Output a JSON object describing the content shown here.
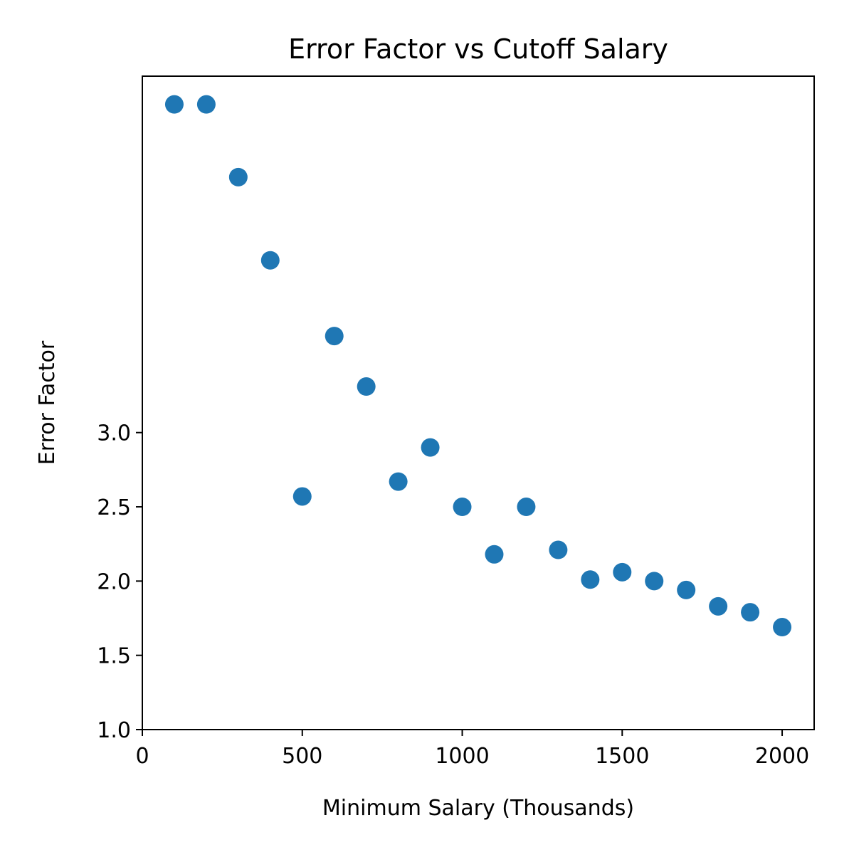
{
  "chart_data": {
    "type": "scatter",
    "title": "Error Factor vs Cutoff Salary",
    "xlabel": "Minimum Salary (Thousands)",
    "ylabel": "Error Factor",
    "xlim": [
      0,
      2100
    ],
    "ylim": [
      1.0,
      5.4
    ],
    "xticks": [
      0,
      500,
      1000,
      1500,
      2000
    ],
    "xtick_labels": [
      "0",
      "500",
      "1000",
      "1500",
      "2000"
    ],
    "yticks": [
      1.0,
      1.5,
      2.0,
      2.5,
      3.0
    ],
    "ytick_labels": [
      "1.0",
      "1.5",
      "2.0",
      "2.5",
      "3.0"
    ],
    "grid": false,
    "marker_color": "#1f77b4",
    "series": [
      {
        "x": [
          100,
          200,
          300,
          400,
          500,
          600,
          700,
          800,
          900,
          1000,
          1100,
          1200,
          1300,
          1400,
          1500,
          1600,
          1700,
          1800,
          1900,
          2000
        ],
        "y": [
          5.21,
          5.21,
          4.72,
          4.16,
          2.57,
          3.65,
          3.31,
          2.67,
          2.9,
          2.5,
          2.18,
          2.5,
          2.21,
          2.01,
          2.06,
          2.0,
          1.94,
          1.83,
          1.79,
          1.69
        ]
      }
    ]
  }
}
